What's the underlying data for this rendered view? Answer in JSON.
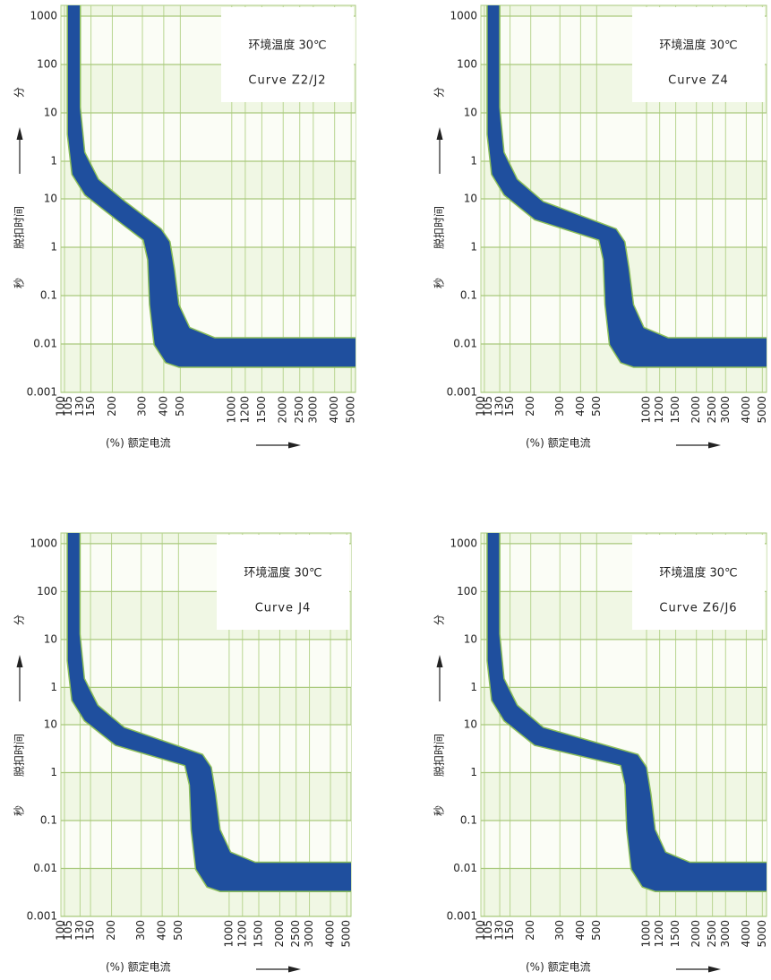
{
  "chart_data": [
    {
      "type": "band",
      "title": "环境温度 30℃",
      "subtitle": "Curve Z2/J2",
      "y_label_upper": "分",
      "y_label": "脱扣时间",
      "y_label_lower": "秒",
      "x_label": "(%) 额定电流",
      "log_x": true,
      "log_y": true,
      "grid": true,
      "color": "#1f4f9e",
      "edge_color": "#8cbf5a",
      "xlim": [
        100,
        5300
      ],
      "ylim": [
        0.001,
        100000
      ],
      "xticks": [
        100,
        105,
        130,
        150,
        200,
        300,
        400,
        500,
        1000,
        1200,
        1500,
        2000,
        2500,
        3000,
        4000,
        5000
      ],
      "yticks": [
        {
          "value": 60000,
          "label": "1000"
        },
        {
          "value": 6000,
          "label": "100"
        },
        {
          "value": 600,
          "label": "10"
        },
        {
          "value": 60,
          "label": "1"
        },
        10,
        1,
        0.1,
        0.01,
        0.001
      ],
      "upper": {
        "x": [
          130,
          130,
          138,
          166,
          238,
          386,
          435,
          462,
          491,
          567,
          795,
          5300
        ],
        "y": [
          100000,
          776,
          92,
          25.5,
          8.8,
          2.4,
          1.3,
          0.36,
          0.065,
          0.022,
          0.0135,
          0.0135
        ]
      },
      "lower": {
        "x": [
          109,
          109,
          116,
          138,
          211,
          303,
          322,
          330,
          351,
          410,
          491,
          5300
        ],
        "y": [
          100000,
          215,
          32,
          12,
          3.7,
          1.4,
          0.55,
          0.065,
          0.0096,
          0.0041,
          0.0033,
          0.0033
        ]
      }
    },
    {
      "type": "band",
      "title": "环境温度 30℃",
      "subtitle": "Curve Z4",
      "y_label_upper": "分",
      "y_label": "脱扣时间",
      "y_label_lower": "秒",
      "x_label": "(%) 额定电流",
      "log_x": true,
      "log_y": true,
      "grid": true,
      "color": "#1f4f9e",
      "edge_color": "#8cbf5a",
      "xlim": [
        100,
        5300
      ],
      "ylim": [
        0.001,
        100000
      ],
      "xticks": [
        100,
        105,
        130,
        150,
        200,
        300,
        400,
        500,
        1000,
        1200,
        1500,
        2000,
        2500,
        3000,
        4000,
        5000
      ],
      "yticks": [
        {
          "value": 60000,
          "label": "1000"
        },
        {
          "value": 6000,
          "label": "100"
        },
        {
          "value": 600,
          "label": "10"
        },
        {
          "value": 60,
          "label": "1"
        },
        10,
        1,
        0.1,
        0.01,
        0.001
      ],
      "upper": {
        "x": [
          130,
          130,
          138,
          166,
          238,
          656,
          740,
          785,
          835,
          964,
          1352,
          5300
        ],
        "y": [
          100000,
          776,
          92,
          25.5,
          8.8,
          2.4,
          1.3,
          0.36,
          0.065,
          0.022,
          0.0135,
          0.0135
        ]
      },
      "lower": {
        "x": [
          109,
          109,
          116,
          138,
          211,
          515,
          547,
          561,
          597,
          697,
          835,
          5300
        ],
        "y": [
          100000,
          215,
          32,
          12,
          3.7,
          1.4,
          0.55,
          0.065,
          0.0096,
          0.0041,
          0.0033,
          0.0033
        ]
      }
    },
    {
      "type": "band",
      "title": "环境温度 30℃",
      "subtitle": "Curve J4",
      "y_label_upper": "分",
      "y_label": "脱扣时间",
      "y_label_lower": "秒",
      "x_label": "(%) 额定电流",
      "log_x": true,
      "log_y": true,
      "grid": true,
      "color": "#1f4f9e",
      "edge_color": "#8cbf5a",
      "xlim": [
        100,
        5300
      ],
      "ylim": [
        0.001,
        100000
      ],
      "xticks": [
        100,
        105,
        130,
        150,
        200,
        300,
        400,
        500,
        1000,
        1200,
        1500,
        2000,
        2500,
        3000,
        4000,
        5000
      ],
      "yticks": [
        {
          "value": 60000,
          "label": "1000"
        },
        {
          "value": 6000,
          "label": "100"
        },
        {
          "value": 600,
          "label": "10"
        },
        {
          "value": 60,
          "label": "1"
        },
        10,
        1,
        0.1,
        0.01,
        0.001
      ],
      "upper": {
        "x": [
          130,
          130,
          138,
          166,
          238,
          695,
          783,
          832,
          884,
          1021,
          1431,
          5300
        ],
        "y": [
          100000,
          776,
          92,
          25.5,
          8.8,
          2.4,
          1.3,
          0.36,
          0.065,
          0.022,
          0.0135,
          0.0135
        ]
      },
      "lower": {
        "x": [
          109,
          109,
          116,
          138,
          211,
          545,
          580,
          594,
          632,
          738,
          884,
          5300
        ],
        "y": [
          100000,
          215,
          32,
          12,
          3.7,
          1.4,
          0.55,
          0.065,
          0.0096,
          0.0041,
          0.0033,
          0.0033
        ]
      }
    },
    {
      "type": "band",
      "title": "环境温度 30℃",
      "subtitle": "Curve Z6/J6",
      "y_label_upper": "分",
      "y_label": "脱扣时间",
      "y_label_lower": "秒",
      "x_label": "(%) 额定电流",
      "log_x": true,
      "log_y": true,
      "grid": true,
      "color": "#1f4f9e",
      "edge_color": "#8cbf5a",
      "xlim": [
        100,
        5300
      ],
      "ylim": [
        0.001,
        100000
      ],
      "xticks": [
        100,
        105,
        130,
        150,
        200,
        300,
        400,
        500,
        1000,
        1200,
        1500,
        2000,
        2500,
        3000,
        4000,
        5000
      ],
      "yticks": [
        {
          "value": 60000,
          "label": "1000"
        },
        {
          "value": 6000,
          "label": "100"
        },
        {
          "value": 600,
          "label": "10"
        },
        {
          "value": 60,
          "label": "1"
        },
        10,
        1,
        0.1,
        0.01,
        0.001
      ],
      "upper": {
        "x": [
          130,
          130,
          138,
          166,
          238,
          888,
          1001,
          1063,
          1129,
          1304,
          1829,
          5300
        ],
        "y": [
          100000,
          776,
          92,
          25.5,
          8.8,
          2.4,
          1.3,
          0.36,
          0.065,
          0.022,
          0.0135,
          0.0135
        ]
      },
      "lower": {
        "x": [
          109,
          109,
          116,
          138,
          211,
          697,
          741,
          759,
          807,
          943,
          1129,
          5300
        ],
        "y": [
          100000,
          215,
          32,
          12,
          3.7,
          1.4,
          0.55,
          0.065,
          0.0096,
          0.0041,
          0.0033,
          0.0033
        ]
      }
    }
  ]
}
